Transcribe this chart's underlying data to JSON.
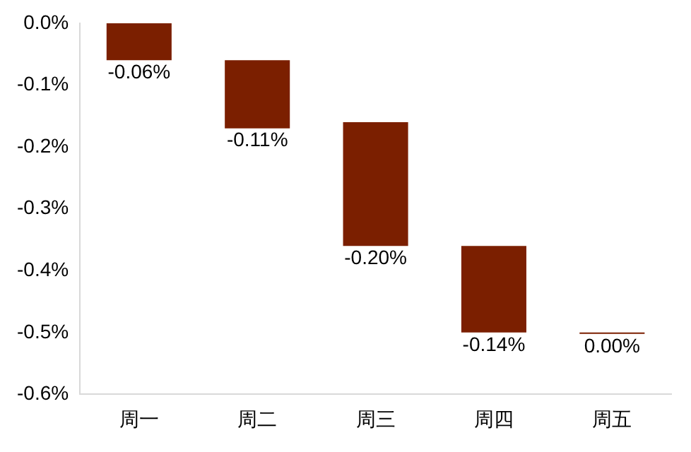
{
  "chart_data": {
    "type": "bar",
    "categories": [
      "周一",
      "周二",
      "周三",
      "周四",
      "周五"
    ],
    "values": [
      -0.06,
      -0.11,
      -0.2,
      -0.14,
      0.0
    ],
    "base": [
      0,
      -0.06,
      -0.16,
      -0.36,
      -0.5
    ],
    "value_labels": [
      "-0.06%",
      "-0.11%",
      "-0.20%",
      "-0.14%",
      "0.00%"
    ],
    "color": "#7b1f00",
    "ylim": [
      -0.6,
      0
    ],
    "yticks": [
      {
        "value": 0,
        "label": "0.0%"
      },
      {
        "value": -0.1,
        "label": "-0.1%"
      },
      {
        "value": -0.2,
        "label": "-0.2%"
      },
      {
        "value": -0.3,
        "label": "-0.3%"
      },
      {
        "value": -0.4,
        "label": "-0.4%"
      },
      {
        "value": -0.5,
        "label": "-0.5%"
      },
      {
        "value": -0.6,
        "label": "-0.6%"
      }
    ],
    "grid": false,
    "legend": false
  }
}
